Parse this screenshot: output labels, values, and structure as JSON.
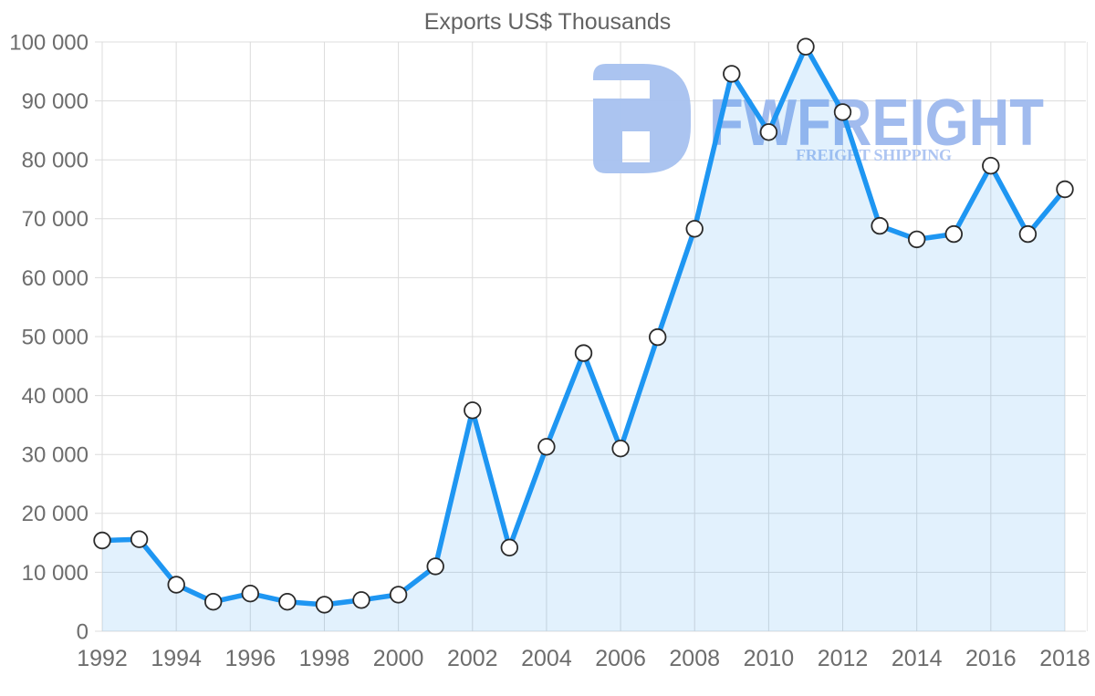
{
  "title": "Exports US$ Thousands",
  "watermark": {
    "brand": "FWFREIGHT",
    "tagline": "FREIGHT SHIPPING"
  },
  "colors": {
    "line": "#1e96f2",
    "area_fill": "#ddeefb",
    "marker_fill": "#ffffff",
    "marker_stroke": "#2b2b2b",
    "grid": "#dcdcdc",
    "axis_text": "#6d6d6d",
    "title_text": "#636363",
    "watermark_logo": "#a6c1ef",
    "watermark_brand": "#9cb8ee",
    "watermark_tagline": "#aec5f2",
    "background": "#ffffff"
  },
  "chart_data": {
    "type": "area",
    "title": "Exports US$ Thousands",
    "xlabel": "",
    "ylabel": "",
    "x": [
      1992,
      1993,
      1994,
      1995,
      1996,
      1997,
      1998,
      1999,
      2000,
      2001,
      2002,
      2003,
      2004,
      2005,
      2006,
      2007,
      2008,
      2009,
      2010,
      2011,
      2012,
      2013,
      2014,
      2015,
      2016,
      2017,
      2018
    ],
    "series": [
      {
        "name": "Exports US$ Thousands",
        "values": [
          15400,
          15600,
          7900,
          5000,
          6400,
          5000,
          4500,
          5300,
          6200,
          11000,
          37500,
          14200,
          31300,
          47200,
          31000,
          49900,
          68300,
          94600,
          84700,
          99200,
          88100,
          68800,
          66500,
          67400,
          79000,
          67400,
          75000
        ]
      }
    ],
    "ylim": [
      0,
      100000
    ],
    "y_ticks": [
      0,
      10000,
      20000,
      30000,
      40000,
      50000,
      60000,
      70000,
      80000,
      90000,
      100000
    ],
    "y_tick_labels": [
      "0",
      "10 000",
      "20 000",
      "30 000",
      "40 000",
      "50 000",
      "60 000",
      "70 000",
      "80 000",
      "90 000",
      "100 000"
    ],
    "x_tick_years": [
      1992,
      1994,
      1996,
      1998,
      2000,
      2002,
      2004,
      2006,
      2008,
      2010,
      2012,
      2014,
      2016,
      2018
    ],
    "x_tick_labels": [
      "1992",
      "1994",
      "1996",
      "1998",
      "2000",
      "2002",
      "2004",
      "2006",
      "2008",
      "2010",
      "2012",
      "2014",
      "2016",
      "2018"
    ],
    "grid": true,
    "legend": "none",
    "marker": "circle"
  }
}
